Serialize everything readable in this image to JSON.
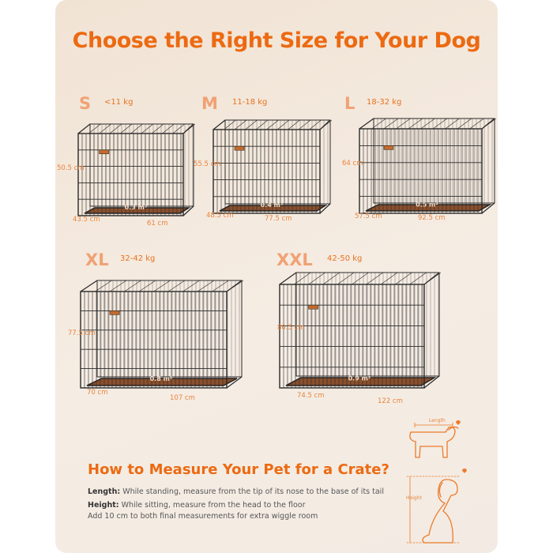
{
  "title": "Choose the Right Size for Your Dog",
  "colors": {
    "accent": "#ec6a12",
    "tray": "#8a4f2c",
    "wire": "#2a2a2a"
  },
  "crates": [
    {
      "size": "S",
      "weight": "<11 kg",
      "height": "50.5 cm",
      "depth": "43.5 cm",
      "width": "61 cm",
      "area": "0.3 m²"
    },
    {
      "size": "M",
      "weight": "11-18 kg",
      "height": "55.5 cm",
      "depth": "48.5 cm",
      "width": "77.5 cm",
      "area": "0.4 m²"
    },
    {
      "size": "L",
      "weight": "18-32 kg",
      "height": "64 cm",
      "depth": "57.5 cm",
      "width": "92.5 cm",
      "area": "0.5 m²"
    },
    {
      "size": "XL",
      "weight": "32-42 kg",
      "height": "77.5 cm",
      "depth": "70 cm",
      "width": "107 cm",
      "area": "0.8 m²"
    },
    {
      "size": "XXL",
      "weight": "42-50 kg",
      "height": "80.5 cm",
      "depth": "74.5 cm",
      "width": "122 cm",
      "area": "0.9 m²"
    }
  ],
  "measure": {
    "title": "How to Measure Your Pet for a Crate?",
    "length_label": "Length:",
    "length_text": " While standing, measure from the tip of its nose to the base of its tail",
    "height_label": "Height:",
    "height_text": " While sitting, measure from the head to the floor",
    "note": "Add 10 cm to both final measurements for extra wiggle room",
    "icon_length": "Length",
    "icon_height": "Height"
  }
}
